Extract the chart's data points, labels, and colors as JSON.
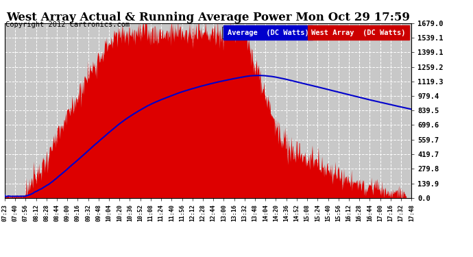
{
  "title": "West Array Actual & Running Average Power Mon Oct 29 17:59",
  "copyright": "Copyright 2012 Cartronics.com",
  "legend_labels": [
    "Average  (DC Watts)",
    "West Array  (DC Watts)"
  ],
  "legend_colors": [
    "#0000cc",
    "#cc0000"
  ],
  "y_ticks": [
    0.0,
    139.9,
    279.8,
    419.7,
    559.7,
    699.6,
    839.5,
    979.4,
    1119.3,
    1259.2,
    1399.1,
    1539.1,
    1679.0
  ],
  "y_max": 1679.0,
  "y_min": 0.0,
  "x_tick_labels": [
    "07:23",
    "07:40",
    "07:56",
    "08:12",
    "08:28",
    "08:44",
    "09:00",
    "09:16",
    "09:32",
    "09:48",
    "10:04",
    "10:20",
    "10:36",
    "10:52",
    "11:08",
    "11:24",
    "11:40",
    "11:56",
    "12:12",
    "12:28",
    "12:44",
    "13:00",
    "13:16",
    "13:32",
    "13:48",
    "14:04",
    "14:20",
    "14:36",
    "14:52",
    "15:08",
    "15:24",
    "15:40",
    "15:56",
    "16:12",
    "16:28",
    "16:44",
    "17:00",
    "17:16",
    "17:32",
    "17:48"
  ],
  "bg_color": "#ffffff",
  "plot_bg_color": "#c8c8c8",
  "grid_color": "#ffffff",
  "fill_color": "#dd0000",
  "line_color": "#0000cc",
  "title_fontsize": 12,
  "copyright_fontsize": 7.5
}
